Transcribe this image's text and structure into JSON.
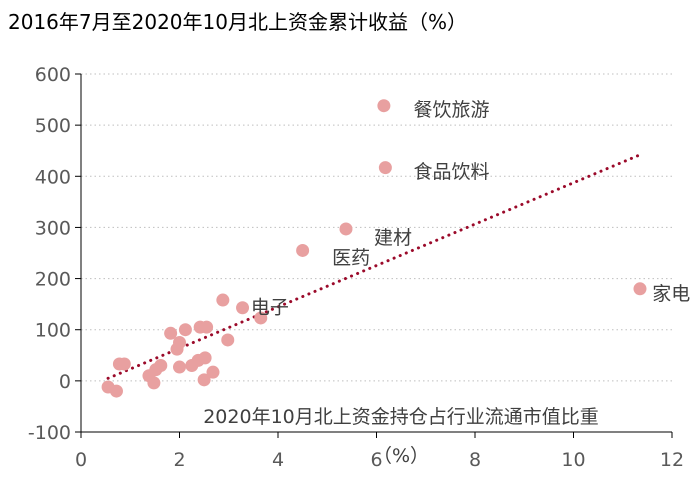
{
  "chart_data": {
    "type": "scatter",
    "title": "2016年7月至2020年10月北上资金累计收益（%）",
    "xlabel_line1": "2020年10月北上资金持仓占行业流通市值比重",
    "xlabel_line2": "（%）",
    "xlim": [
      0,
      12
    ],
    "ylim": [
      -100,
      600
    ],
    "xticks": [
      0,
      2,
      4,
      6,
      8,
      10,
      12
    ],
    "yticks": [
      -100,
      0,
      100,
      200,
      300,
      400,
      500,
      600
    ],
    "grid": "horizontal dotted",
    "point_color": "#e8a0a0",
    "trend_color": "#9b0a2a",
    "trendline": {
      "x": [
        0.55,
        11.35
      ],
      "y": [
        5,
        442
      ]
    },
    "points": [
      {
        "x": 0.55,
        "y": -12
      },
      {
        "x": 0.72,
        "y": -20
      },
      {
        "x": 0.78,
        "y": 33
      },
      {
        "x": 0.88,
        "y": 33
      },
      {
        "x": 1.38,
        "y": 10
      },
      {
        "x": 1.48,
        "y": -4
      },
      {
        "x": 1.52,
        "y": 22
      },
      {
        "x": 1.62,
        "y": 30
      },
      {
        "x": 1.82,
        "y": 93
      },
      {
        "x": 1.95,
        "y": 62
      },
      {
        "x": 2.0,
        "y": 75
      },
      {
        "x": 2.0,
        "y": 27
      },
      {
        "x": 2.12,
        "y": 100
      },
      {
        "x": 2.25,
        "y": 30
      },
      {
        "x": 2.38,
        "y": 40
      },
      {
        "x": 2.42,
        "y": 105
      },
      {
        "x": 2.5,
        "y": 2
      },
      {
        "x": 2.52,
        "y": 45
      },
      {
        "x": 2.55,
        "y": 105
      },
      {
        "x": 2.68,
        "y": 17
      },
      {
        "x": 2.88,
        "y": 158
      },
      {
        "x": 2.98,
        "y": 80
      },
      {
        "x": 3.28,
        "y": 143
      },
      {
        "x": 3.65,
        "y": 123
      },
      {
        "x": 4.5,
        "y": 255
      },
      {
        "x": 5.38,
        "y": 297
      },
      {
        "x": 6.15,
        "y": 538
      },
      {
        "x": 6.18,
        "y": 417
      },
      {
        "x": 11.35,
        "y": 180
      }
    ],
    "annotations": [
      {
        "text": "餐饮旅游",
        "x": 6.75,
        "y": 532
      },
      {
        "text": "食品饮料",
        "x": 6.75,
        "y": 410
      },
      {
        "text": "建材",
        "x": 5.95,
        "y": 281
      },
      {
        "text": "医药",
        "x": 5.1,
        "y": 242
      },
      {
        "text": "电子",
        "x": 3.45,
        "y": 145
      },
      {
        "text": "家电",
        "x": 11.6,
        "y": 172
      }
    ]
  }
}
